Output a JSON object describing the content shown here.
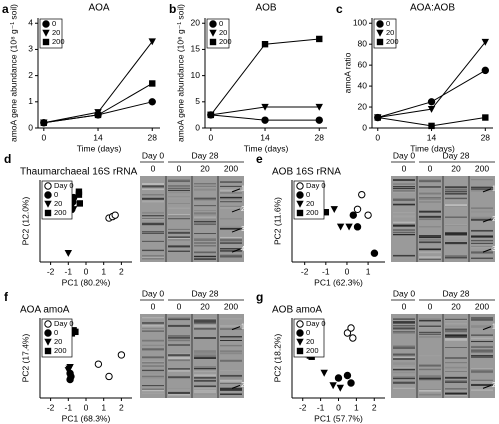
{
  "chart_data": [
    {
      "type": "line",
      "panel": "a",
      "title": "AOA",
      "xlabel": "Time (days)",
      "ylabel": "amoA gene abundance (10⁸ g⁻¹ soil)",
      "x": [
        0,
        14,
        28
      ],
      "xlim": [
        -1.5,
        30
      ],
      "xticks": [
        0,
        14,
        28
      ],
      "ylim": [
        0,
        4.2
      ],
      "yticks": [
        0,
        1,
        2,
        3,
        4
      ],
      "series": [
        {
          "name": "0",
          "marker": "circle",
          "color": "#000000",
          "values": [
            0.2,
            0.5,
            1.0
          ]
        },
        {
          "name": "20",
          "marker": "triangle",
          "color": "#000000",
          "values": [
            0.2,
            0.6,
            3.3
          ]
        },
        {
          "name": "200",
          "marker": "square",
          "color": "#000000",
          "values": [
            0.2,
            0.5,
            1.7
          ]
        }
      ]
    },
    {
      "type": "line",
      "panel": "b",
      "title": "AOB",
      "xlabel": "Time (days)",
      "ylabel": "amoA gene abundance (10⁶ g⁻¹ soil)",
      "x": [
        0,
        14,
        28
      ],
      "xlim": [
        -1.5,
        30
      ],
      "xticks": [
        0,
        14,
        28
      ],
      "ylim": [
        0,
        21
      ],
      "yticks": [
        0,
        5,
        10,
        15,
        20
      ],
      "series": [
        {
          "name": "0",
          "marker": "circle",
          "color": "#000000",
          "values": [
            2.5,
            1.5,
            1.5
          ]
        },
        {
          "name": "20",
          "marker": "triangle",
          "color": "#000000",
          "values": [
            2.5,
            4,
            4
          ]
        },
        {
          "name": "200",
          "marker": "square",
          "color": "#000000",
          "values": [
            2.5,
            16,
            17
          ]
        }
      ]
    },
    {
      "type": "line",
      "panel": "c",
      "title": "AOA:AOB",
      "xlabel": "Time (days)",
      "ylabel": "amoA ratio",
      "x": [
        0,
        14,
        28
      ],
      "xlim": [
        -1.5,
        30
      ],
      "xticks": [
        0,
        14,
        28
      ],
      "ylim": [
        0,
        105
      ],
      "yticks": [
        0,
        20,
        40,
        60,
        80,
        100
      ],
      "series": [
        {
          "name": "0",
          "marker": "circle",
          "color": "#000000",
          "values": [
            10,
            25,
            55
          ]
        },
        {
          "name": "20",
          "marker": "triangle",
          "color": "#000000",
          "values": [
            10,
            18,
            82
          ]
        },
        {
          "name": "200",
          "marker": "square",
          "color": "#000000",
          "values": [
            10,
            2,
            10
          ]
        }
      ]
    },
    {
      "type": "scatter",
      "panel": "d",
      "title": "Thaumarchaeal 16S rRNA",
      "xlabel": "PC1 (80.2%)",
      "ylabel": "PC2 (12.0%)",
      "xlim": [
        -2.6,
        2.6
      ],
      "xticks": [
        -2,
        -1,
        0,
        1,
        2
      ],
      "ylim": [
        -1.2,
        1.6
      ],
      "gel_header": [
        "Day 0",
        "Day 28"
      ],
      "gel_lanes": [
        "0",
        "0",
        "20",
        "200"
      ],
      "gel_bands": [
        "1",
        "2",
        "3",
        "4"
      ],
      "series": [
        {
          "name": "Day 0",
          "marker": "open-circle",
          "color": "#000000",
          "x": [
            1.3,
            1.5,
            1.65
          ],
          "y": [
            0.3,
            0.35,
            0.4
          ]
        },
        {
          "name": "0",
          "marker": "circle",
          "color": "#000000",
          "x": [
            -0.7,
            -0.75,
            -0.8
          ],
          "y": [
            1.0,
            0.85,
            0.6
          ]
        },
        {
          "name": "20",
          "marker": "triangle",
          "color": "#000000",
          "x": [
            -0.8,
            -0.7,
            -1.0
          ],
          "y": [
            0.7,
            0.6,
            -0.9
          ]
        },
        {
          "name": "200",
          "marker": "square",
          "color": "#000000",
          "x": [
            -0.4,
            -0.4,
            -0.35
          ],
          "y": [
            1.2,
            1.1,
            0.8
          ]
        }
      ]
    },
    {
      "type": "scatter",
      "panel": "e",
      "title": "AOB 16S rRNA",
      "xlabel": "PC1 (62.3%)",
      "ylabel": "PC2 (11.6%)",
      "xlim": [
        -2.6,
        1.8
      ],
      "xticks": [
        -2,
        -1,
        0,
        1
      ],
      "ylim": [
        -1.3,
        1.5
      ],
      "gel_header": [
        "Day 0",
        "Day 28"
      ],
      "gel_lanes": [
        "0",
        "0",
        "20",
        "200"
      ],
      "gel_bands": [
        "1",
        "2",
        "3"
      ],
      "series": [
        {
          "name": "Day 0",
          "marker": "open-circle",
          "color": "#000000",
          "x": [
            0.7,
            0.5,
            1.0
          ],
          "y": [
            1.0,
            0.5,
            0.3
          ]
        },
        {
          "name": "0",
          "marker": "circle",
          "color": "#000000",
          "x": [
            0.5,
            1.3,
            0.3
          ],
          "y": [
            -0.1,
            -1.0,
            0.3
          ]
        },
        {
          "name": "20",
          "marker": "triangle",
          "color": "#000000",
          "x": [
            -0.6,
            -0.3,
            0.1
          ],
          "y": [
            0.5,
            -0.1,
            -0.1
          ]
        },
        {
          "name": "200",
          "marker": "square",
          "color": "#000000",
          "x": [
            -1.5,
            -1.9,
            -1.0
          ],
          "y": [
            0.3,
            0.4,
            0.4
          ]
        }
      ]
    },
    {
      "type": "scatter",
      "panel": "f",
      "title": "AOA amoA",
      "xlabel": "PC1 (68.3%)",
      "ylabel": "PC2 (17.4%)",
      "xlim": [
        -2.6,
        2.6
      ],
      "xticks": [
        -2,
        -1,
        0,
        1,
        2
      ],
      "ylim": [
        -1.2,
        1.4
      ],
      "gel_header": [
        "Day 0",
        "Day 28"
      ],
      "gel_lanes": [
        "0",
        "0",
        "20",
        "200"
      ],
      "gel_bands": [
        "1",
        "2"
      ],
      "series": [
        {
          "name": "Day 0",
          "marker": "open-circle",
          "color": "#000000",
          "x": [
            0.7,
            1.3,
            2.0
          ],
          "y": [
            -0.1,
            -0.5,
            0.2
          ]
        },
        {
          "name": "0",
          "marker": "circle",
          "color": "#000000",
          "x": [
            -0.9,
            -0.9,
            -0.85
          ],
          "y": [
            -0.4,
            -0.6,
            -0.5
          ]
        },
        {
          "name": "20",
          "marker": "triangle",
          "color": "#000000",
          "x": [
            -1.0,
            -0.9,
            -0.95
          ],
          "y": [
            -0.3,
            -0.2,
            -0.25
          ]
        },
        {
          "name": "200",
          "marker": "square",
          "color": "#000000",
          "x": [
            -0.8,
            -0.7,
            -0.6
          ],
          "y": [
            0.9,
            1.0,
            0.95
          ]
        }
      ]
    },
    {
      "type": "scatter",
      "panel": "g",
      "title": "AOB amoA",
      "xlabel": "PC1 (57.7%)",
      "ylabel": "PC2 (18.2%)",
      "xlim": [
        -2.6,
        2.6
      ],
      "xticks": [
        -2,
        -1,
        0,
        1,
        2
      ],
      "ylim": [
        -1.4,
        1.8
      ],
      "gel_header": [
        "Day 0",
        "Day 28"
      ],
      "gel_lanes": [
        "0",
        "0",
        "20",
        "200"
      ],
      "gel_bands": [
        "1",
        "2"
      ],
      "series": [
        {
          "name": "Day 0",
          "marker": "open-circle",
          "color": "#000000",
          "x": [
            0.5,
            0.8,
            0.7
          ],
          "y": [
            1.2,
            1.0,
            1.4
          ]
        },
        {
          "name": "0",
          "marker": "circle",
          "color": "#000000",
          "x": [
            0.0,
            0.5,
            0.7
          ],
          "y": [
            -0.6,
            -0.5,
            -0.8
          ]
        },
        {
          "name": "20",
          "marker": "triangle",
          "color": "#000000",
          "x": [
            -0.8,
            -0.3,
            0.1
          ],
          "y": [
            -0.4,
            -0.9,
            -1.0
          ]
        },
        {
          "name": "200",
          "marker": "square",
          "color": "#000000",
          "x": [
            -1.6,
            -1.5,
            -1.7
          ],
          "y": [
            0.3,
            0.25,
            0.35
          ]
        }
      ]
    }
  ]
}
